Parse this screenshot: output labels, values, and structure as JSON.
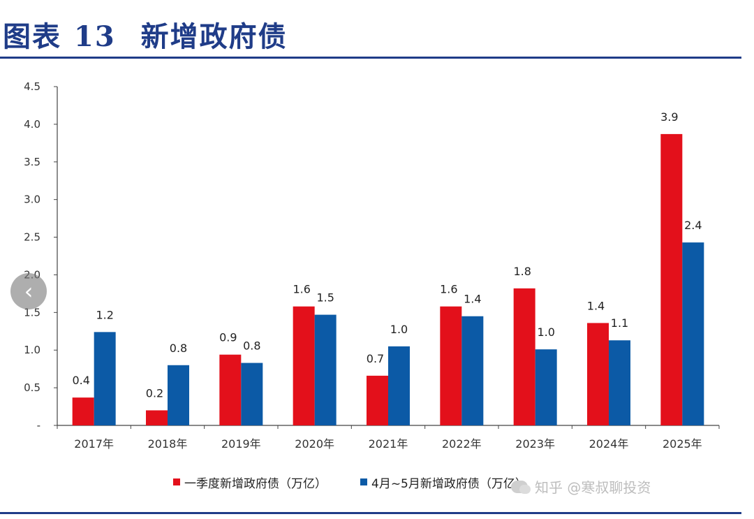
{
  "header": {
    "title_prefix": "图表",
    "title_number": "13",
    "title_text": "新增政府债"
  },
  "chart_data": {
    "type": "bar",
    "title": "新增政府债",
    "categories": [
      "2017年",
      "2018年",
      "2019年",
      "2020年",
      "2021年",
      "2022年",
      "2023年",
      "2024年",
      "2025年"
    ],
    "series": [
      {
        "name": "一季度新增政府债（万亿）",
        "color": "#e3101b",
        "values": [
          0.37,
          0.2,
          0.94,
          1.58,
          0.66,
          1.58,
          1.82,
          1.36,
          3.87
        ]
      },
      {
        "name": "4月~5月新增政府债（万亿）",
        "color": "#0c5aa6",
        "values": [
          1.24,
          0.8,
          0.83,
          1.47,
          1.05,
          1.45,
          1.01,
          1.13,
          2.43
        ]
      }
    ],
    "data_labels": [
      [
        "0.4",
        "0.2",
        "0.9",
        "1.6",
        "0.7",
        "1.6",
        "1.8",
        "1.4",
        "3.9"
      ],
      [
        "1.2",
        "0.8",
        "0.8",
        "1.5",
        "1.0",
        "1.4",
        "1.0",
        "1.1",
        "2.4"
      ]
    ],
    "y_ticks": [
      "-",
      "0.5",
      "1.0",
      "1.5",
      "2.0",
      "2.5",
      "3.0",
      "3.5",
      "4.0",
      "4.5"
    ],
    "ylim": [
      0,
      4.5
    ],
    "grid": false,
    "legend_position": "bottom"
  },
  "watermark": {
    "text": "知乎 @寒叔聊投资"
  },
  "nav": {
    "prev_icon": "‹"
  }
}
